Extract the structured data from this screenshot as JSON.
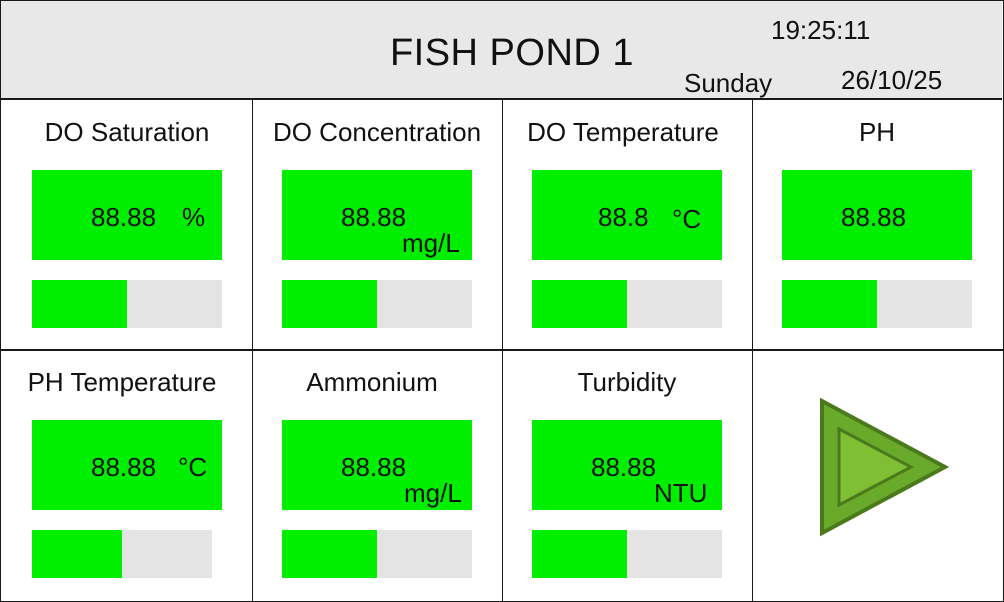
{
  "header": {
    "title": "FISH POND 1",
    "time": "19:25:11",
    "day": "Sunday",
    "date": "26/10/25"
  },
  "colors": {
    "readout_bg": "#00ef00",
    "bar_track": "#e4e4e4",
    "header_bg": "#e8e8e8",
    "play_fill": "#6aaa2a",
    "play_stroke": "#4a7a1c"
  },
  "sensors": {
    "do_saturation": {
      "label": "DO Saturation",
      "value": "88.88",
      "unit": "%",
      "level": 0.5
    },
    "do_concentration": {
      "label": "DO Concentration",
      "value": "88.88",
      "unit": "mg/L",
      "level": 0.5
    },
    "do_temperature": {
      "label": "DO Temperature",
      "value": "88.8",
      "unit": "°C",
      "level": 0.5
    },
    "ph": {
      "label": "PH",
      "value": "88.88",
      "unit": "",
      "level": 0.5
    },
    "ph_temperature": {
      "label": "PH Temperature",
      "value": "88.88",
      "unit": "°C",
      "level": 0.5
    },
    "ammonium": {
      "label": "Ammonium",
      "value": "88.88",
      "unit": "mg/L",
      "level": 0.5
    },
    "turbidity": {
      "label": "Turbidity",
      "value": "88.88",
      "unit": "NTU",
      "level": 0.5
    }
  },
  "controls": {
    "next_icon": "play-triangle-icon"
  }
}
